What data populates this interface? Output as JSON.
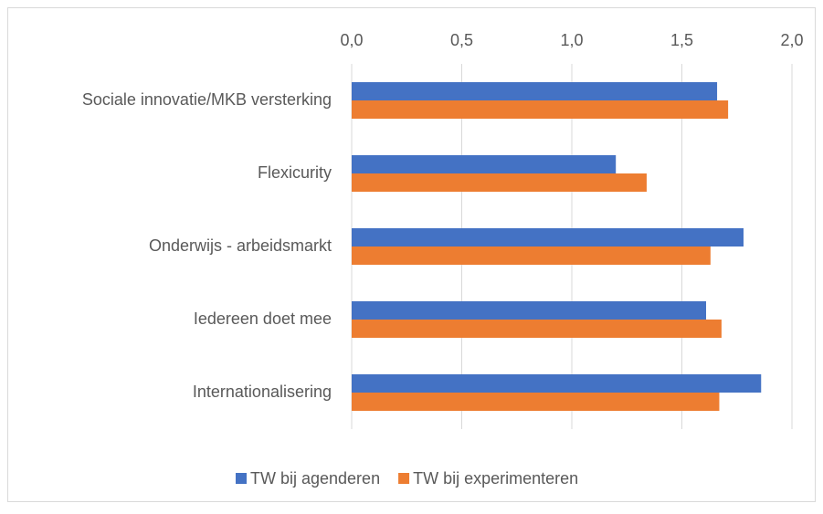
{
  "chart_data": {
    "type": "hbar",
    "categories": [
      "Sociale innovatie/MKB versterking",
      "Flexicurity",
      "Onderwijs - arbeidsmarkt",
      "Iedereen doet mee",
      "Internationalisering"
    ],
    "series": [
      {
        "name": "TW bij agenderen",
        "color": "#4472c4",
        "values": [
          1.66,
          1.2,
          1.78,
          1.61,
          1.86
        ]
      },
      {
        "name": "TW bij experimenteren",
        "color": "#ed7d31",
        "values": [
          1.71,
          1.34,
          1.63,
          1.68,
          1.67
        ]
      }
    ],
    "xlim": [
      0,
      2
    ],
    "xticks": [
      {
        "value": 0,
        "label": "0,0"
      },
      {
        "value": 0.5,
        "label": "0,5"
      },
      {
        "value": 1,
        "label": "1,0"
      },
      {
        "value": 1.5,
        "label": "1,5"
      },
      {
        "value": 2,
        "label": "2,0"
      }
    ],
    "grid": true,
    "legend": "bottom"
  }
}
